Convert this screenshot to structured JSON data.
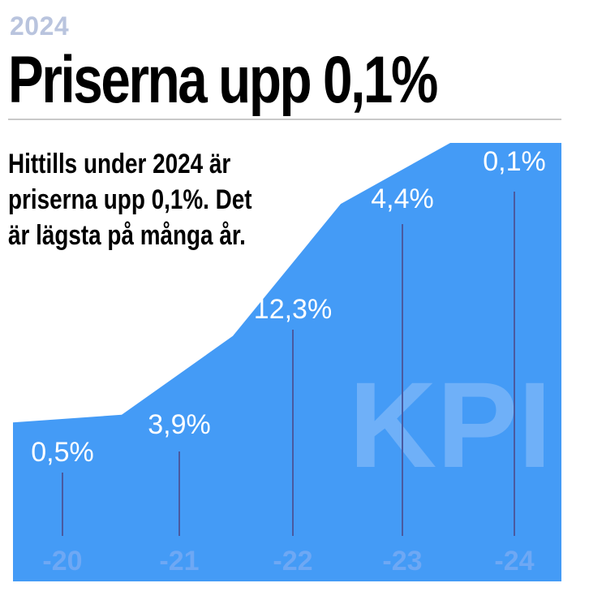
{
  "header": {
    "year": "2024",
    "headline": "Priserna upp 0,1%",
    "intro_lines": [
      "Hittills under 2024 är",
      "priserna upp 0,1%. Det",
      "är lägsta på många år."
    ]
  },
  "watermark": "KPI",
  "colors": {
    "area": "#449bf6",
    "watermark": "#6fb0f8",
    "year": "#b9c4de",
    "x_labels": "#6ea8f4",
    "drop_lines": "#4a5aa0"
  },
  "chart_data": {
    "type": "area",
    "categories": [
      "-20",
      "-21",
      "-22",
      "-23",
      "-24"
    ],
    "labels": [
      "0,5%",
      "3,9%",
      "12,3%",
      "4,4%",
      "0,1%"
    ],
    "values": [
      0.5,
      3.9,
      12.3,
      4.4,
      0.1
    ],
    "cumulative_index": [
      100.5,
      104.4,
      117.2,
      122.4,
      122.5
    ],
    "title": "Priserna upp 0,1%",
    "xlabel": "",
    "ylabel": "",
    "grid": false,
    "legend": "none"
  }
}
